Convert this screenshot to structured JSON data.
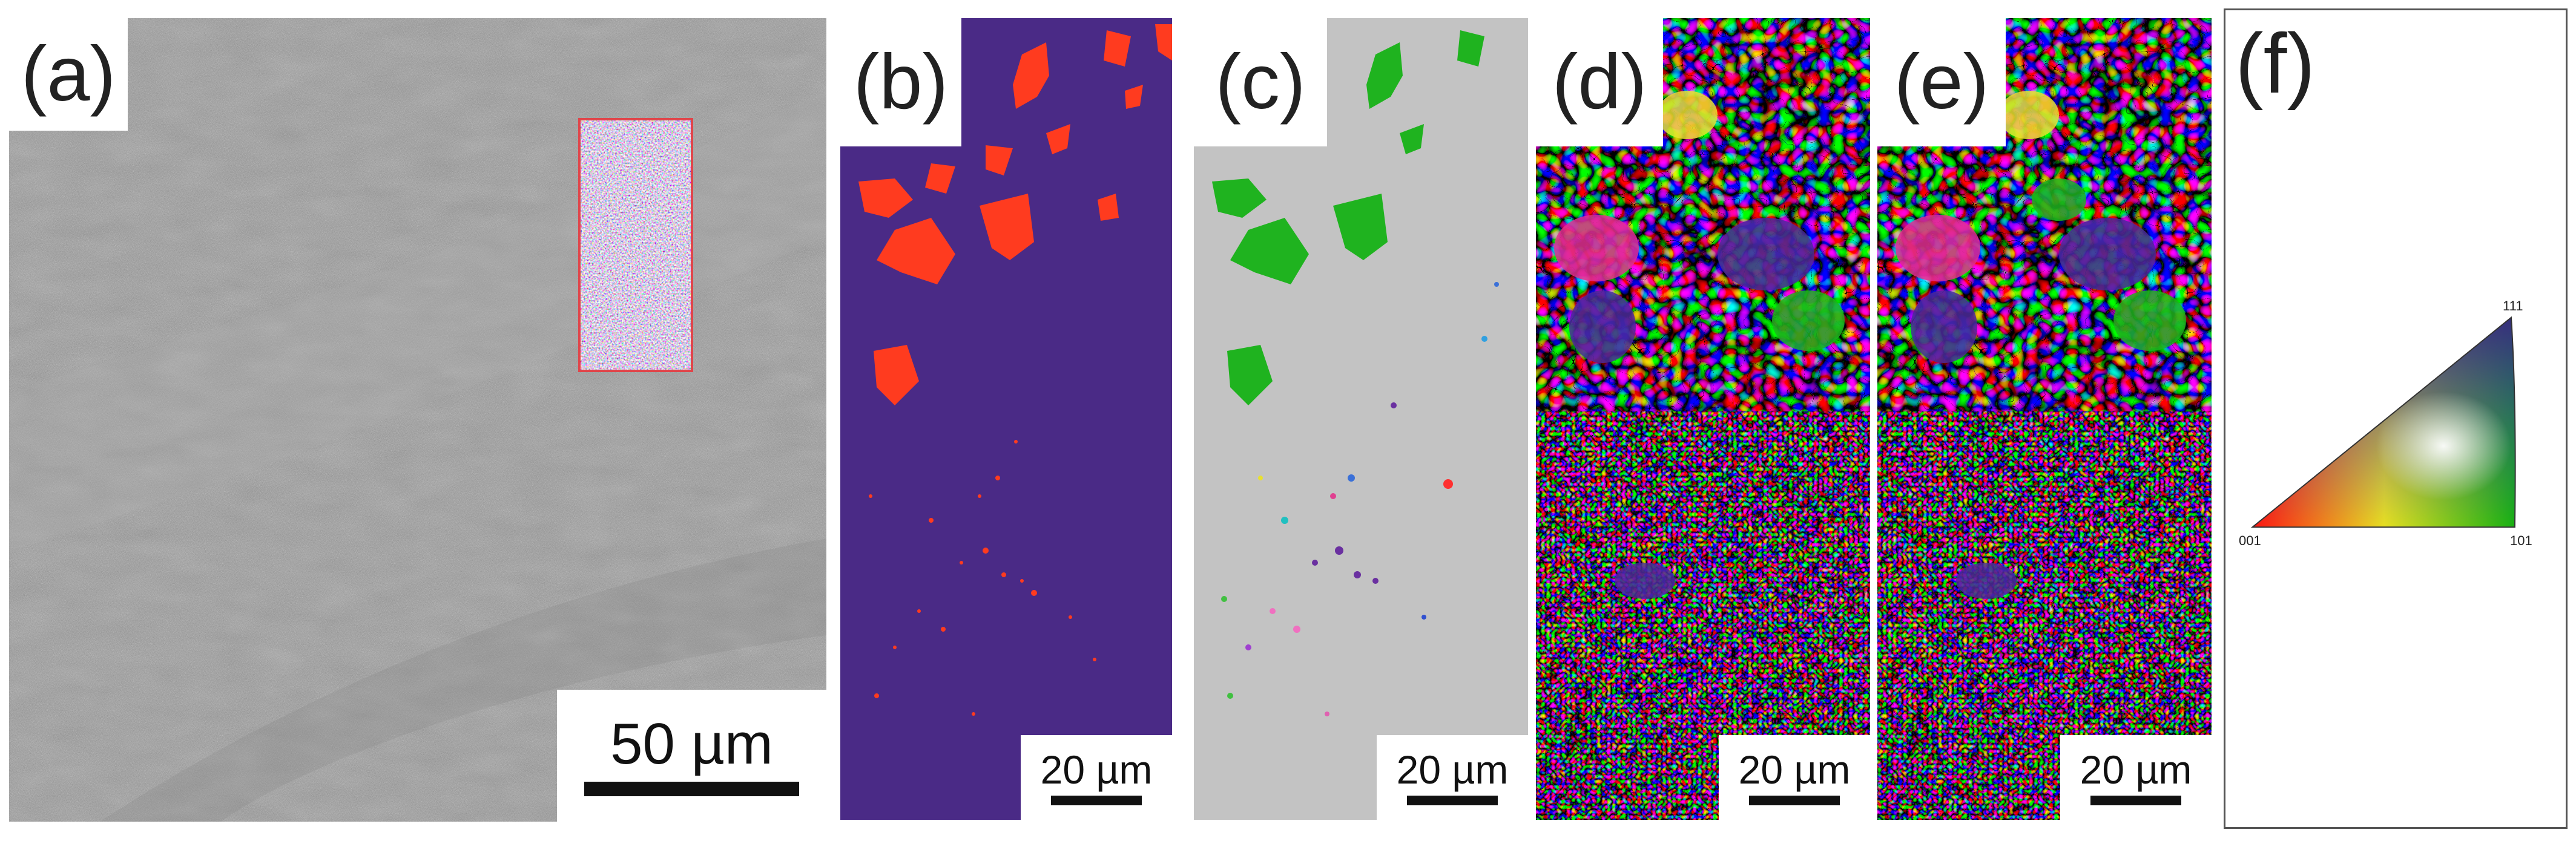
{
  "panels": {
    "a": {
      "label": "(a)",
      "scale": "50 µm"
    },
    "b": {
      "label": "(b)",
      "scale": "20 µm"
    },
    "c": {
      "label": "(c)",
      "scale": "20 µm"
    },
    "d": {
      "label": "(d)",
      "scale": "20 µm"
    },
    "e": {
      "label": "(e)",
      "scale": "20 µm"
    },
    "f": {
      "label": "(f)"
    }
  },
  "ipf_legend": {
    "corner_001": "001",
    "corner_101": "101",
    "corner_111": "111"
  },
  "colors": {
    "sem_gray": "#9a9a9a",
    "phase_matrix": "#4a2a86",
    "phase_second": "#ff3b1f",
    "ipf_background": "#c3c3c3",
    "ipf_red": "#ff1e1e",
    "ipf_green": "#1fb31f",
    "ipf_blue": "#4b2a9a"
  }
}
